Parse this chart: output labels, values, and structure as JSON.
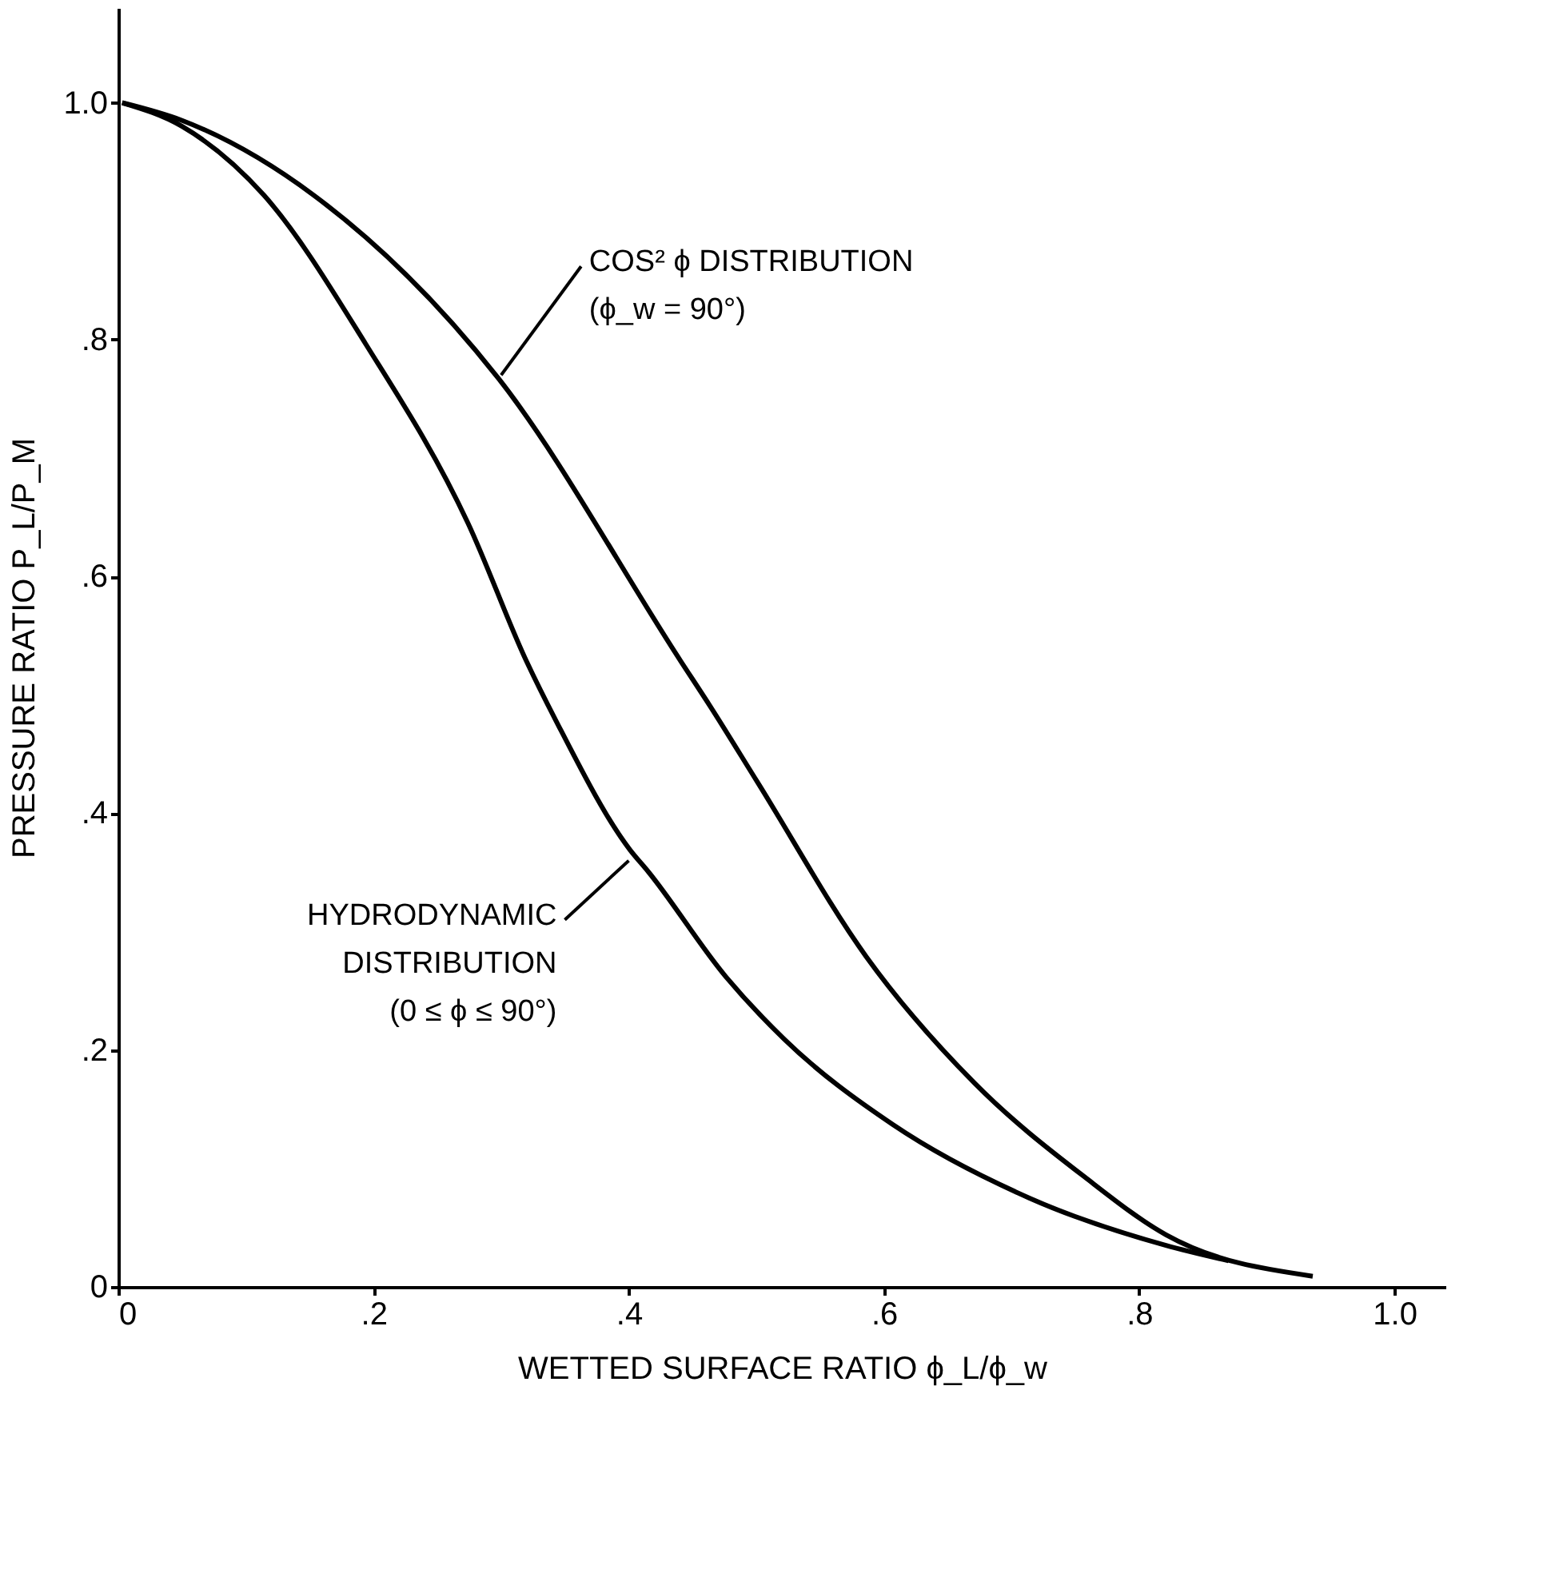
{
  "chart_data": {
    "type": "line",
    "xlabel": "WETTED SURFACE RATIO ϕ_L/ϕ_w",
    "ylabel": "PRESSURE RATIO P_L/P_M",
    "xlim": [
      0,
      1.04
    ],
    "ylim": [
      0,
      1.08
    ],
    "xticks": [
      0,
      {
        "value": 0.2,
        "label": ".2"
      },
      {
        "value": 0.4,
        "label": ".4"
      },
      {
        "value": 0.6,
        "label": ".6"
      },
      {
        "value": 0.8,
        "label": ".8"
      },
      {
        "value": 1.0,
        "label": "1.0"
      }
    ],
    "yticks": [
      0,
      {
        "value": 0.2,
        "label": ".2"
      },
      {
        "value": 0.4,
        "label": ".4"
      },
      {
        "value": 0.6,
        "label": ".6"
      },
      {
        "value": 0.8,
        "label": ".8"
      },
      {
        "value": 1.0,
        "label": "1.0"
      }
    ],
    "grid": false,
    "marker": "none",
    "line_style": "solid",
    "series": [
      {
        "color": "#000000",
        "x": [
          0.003,
          0.05,
          0.153,
          0.298,
          0.441,
          0.464,
          0.501,
          0.586,
          0.671,
          0.757,
          0.821,
          0.936
        ],
        "values": [
          1.0,
          0.985,
          0.922,
          0.767,
          0.528,
          0.49,
          0.426,
          0.279,
          0.172,
          0.093,
          0.044,
          0.009
        ]
      },
      {
        "color": "#000000",
        "x": [
          0.003,
          0.05,
          0.114,
          0.194,
          0.274,
          0.32,
          0.343,
          0.401,
          0.415,
          0.476,
          0.522,
          0.607,
          0.714,
          0.821,
          0.87
        ],
        "values": [
          1.0,
          0.98,
          0.922,
          0.796,
          0.645,
          0.528,
          0.478,
          0.369,
          0.351,
          0.262,
          0.209,
          0.137,
          0.075,
          0.035,
          0.022
        ]
      }
    ],
    "annotations": [
      {
        "text": "COS² ϕ DISTRIBUTION\n(ϕ_w = 90°)",
        "x": 0.3,
        "y": 0.77
      },
      {
        "text": "HYDRODYNAMIC\nDISTRIBUTION\n(0 ≤ ϕ ≤ 90°)",
        "x": 0.4,
        "y": 0.36
      }
    ]
  }
}
